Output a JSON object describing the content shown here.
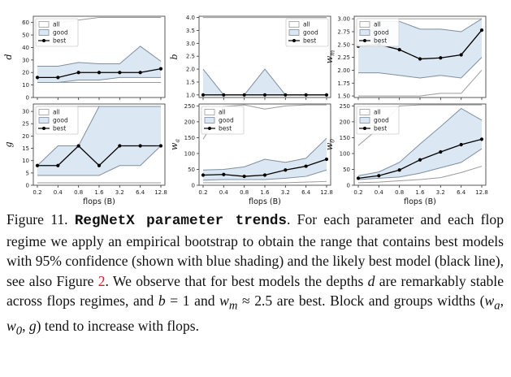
{
  "colors": {
    "band_all_line": "#9a9a9a",
    "band_good_fill": "#dbe7f3",
    "band_good_line": "#7f8fa0",
    "best_line": "#000000",
    "link_red": "#d42020"
  },
  "chart_data": [
    {
      "type": "line",
      "ylabel": "d",
      "ylabel_sub": "",
      "xlabel": "",
      "ylim": [
        0,
        65
      ],
      "yticks": [
        0,
        10,
        20,
        30,
        40,
        50,
        60
      ],
      "yticklabels": [
        "0",
        "10",
        "20",
        "30",
        "40",
        "50",
        "60"
      ],
      "xticklabels": [],
      "legend": [
        "all",
        "good",
        "best"
      ],
      "legend_position": "top-left",
      "x": [
        0,
        1,
        2,
        3,
        4,
        5,
        6
      ],
      "all_lo": [
        12,
        12,
        12,
        12,
        12,
        12,
        12
      ],
      "all_hi": [
        58,
        60,
        62,
        64,
        64,
        64,
        64
      ],
      "good_lo": [
        12,
        12,
        14,
        14,
        16,
        16,
        16
      ],
      "good_hi": [
        25,
        25,
        28,
        27,
        27,
        41,
        29
      ],
      "best": [
        16,
        16,
        20,
        20,
        20,
        20,
        23
      ]
    },
    {
      "type": "line",
      "ylabel": "b",
      "ylabel_sub": "",
      "xlabel": "",
      "ylim": [
        0.9,
        4.05
      ],
      "yticks": [
        1.0,
        1.5,
        2.0,
        2.5,
        3.0,
        3.5,
        4.0
      ],
      "yticklabels": [
        "1.0",
        "1.5",
        "2.0",
        "2.5",
        "3.0",
        "3.5",
        "4.0"
      ],
      "xticklabels": [],
      "legend": [
        "all",
        "good",
        "best"
      ],
      "legend_position": "top-right",
      "x": [
        0,
        1,
        2,
        3,
        4,
        5,
        6
      ],
      "all_lo": [
        1,
        1,
        1,
        1,
        1,
        1,
        1
      ],
      "all_hi": [
        4,
        4,
        4,
        4,
        4,
        4,
        4
      ],
      "good_lo": [
        1,
        1,
        1,
        1,
        1,
        1,
        1
      ],
      "good_hi": [
        2,
        1,
        1,
        2,
        1,
        1,
        1
      ],
      "best": [
        1,
        1,
        1,
        1,
        1,
        1,
        1
      ]
    },
    {
      "type": "line",
      "ylabel": "w",
      "ylabel_sub": "m",
      "xlabel": "",
      "ylim": [
        1.47,
        3.05
      ],
      "yticks": [
        1.5,
        1.75,
        2.0,
        2.25,
        2.5,
        2.75,
        3.0
      ],
      "yticklabels": [
        "1.50",
        "1.75",
        "2.00",
        "2.25",
        "2.50",
        "2.75",
        "3.00"
      ],
      "xticklabels": [],
      "legend": [
        "all",
        "good",
        "best"
      ],
      "legend_position": "top-left",
      "x": [
        0,
        1,
        2,
        3,
        4,
        5,
        6
      ],
      "all_lo": [
        1.5,
        1.5,
        1.5,
        1.5,
        1.55,
        1.55,
        2.0
      ],
      "all_hi": [
        3.0,
        3.0,
        3.0,
        3.0,
        3.0,
        3.0,
        3.0
      ],
      "good_lo": [
        1.95,
        1.95,
        1.9,
        1.85,
        1.9,
        1.85,
        2.25
      ],
      "good_hi": [
        2.9,
        2.95,
        2.95,
        2.8,
        2.8,
        2.75,
        3.0
      ],
      "best": [
        2.47,
        2.5,
        2.4,
        2.22,
        2.24,
        2.3,
        2.78
      ]
    },
    {
      "type": "line",
      "ylabel": "g",
      "ylabel_sub": "",
      "xlabel": "flops (B)",
      "ylim": [
        0,
        33
      ],
      "yticks": [
        0,
        5,
        10,
        15,
        20,
        25,
        30
      ],
      "yticklabels": [
        "0",
        "5",
        "10",
        "15",
        "20",
        "25",
        "30"
      ],
      "xticklabels": [
        "0.2",
        "0.4",
        "0.8",
        "1.6",
        "3.2",
        "6.4",
        "12.8"
      ],
      "legend": [
        "all",
        "good",
        "best"
      ],
      "legend_position": "top-left",
      "x": [
        0,
        1,
        2,
        3,
        4,
        5,
        6
      ],
      "all_lo": [
        1,
        1,
        1,
        1,
        1,
        1,
        1
      ],
      "all_hi": [
        32,
        32,
        32,
        32,
        32,
        32,
        32
      ],
      "good_lo": [
        4,
        4,
        4,
        4,
        8,
        8,
        16
      ],
      "good_hi": [
        8,
        16,
        16,
        32,
        32,
        32,
        32
      ],
      "best": [
        8,
        8,
        16,
        8,
        16,
        16,
        16
      ]
    },
    {
      "type": "line",
      "ylabel": "w",
      "ylabel_sub": "a",
      "xlabel": "flops (B)",
      "ylim": [
        0,
        256
      ],
      "yticks": [
        0,
        50,
        100,
        150,
        200,
        250
      ],
      "yticklabels": [
        "0",
        "50",
        "100",
        "150",
        "200",
        "250"
      ],
      "xticklabels": [
        "0.2",
        "0.4",
        "0.8",
        "1.6",
        "3.2",
        "6.4",
        "12.8"
      ],
      "legend": [
        "all",
        "good",
        "best"
      ],
      "legend_position": "top-left",
      "x": [
        0,
        1,
        2,
        3,
        4,
        5,
        6
      ],
      "all_lo": [
        8,
        8,
        8,
        8,
        8,
        10,
        12
      ],
      "all_hi": [
        145,
        248,
        253,
        240,
        250,
        253,
        253
      ],
      "good_lo": [
        16,
        18,
        18,
        18,
        22,
        28,
        48
      ],
      "good_hi": [
        48,
        50,
        58,
        82,
        72,
        85,
        148
      ],
      "best": [
        32,
        34,
        28,
        32,
        48,
        60,
        82
      ]
    },
    {
      "type": "line",
      "ylabel": "w",
      "ylabel_sub": "0",
      "xlabel": "flops (B)",
      "ylim": [
        0,
        256
      ],
      "yticks": [
        0,
        50,
        100,
        150,
        200,
        250
      ],
      "yticklabels": [
        "0",
        "50",
        "100",
        "150",
        "200",
        "250"
      ],
      "xticklabels": [
        "0.2",
        "0.4",
        "0.8",
        "1.6",
        "3.2",
        "6.4",
        "12.8"
      ],
      "legend": [
        "all",
        "good",
        "best"
      ],
      "legend_position": "top-left",
      "x": [
        0,
        1,
        2,
        3,
        4,
        5,
        6
      ],
      "all_lo": [
        8,
        10,
        14,
        18,
        24,
        40,
        60
      ],
      "all_hi": [
        125,
        180,
        250,
        253,
        253,
        253,
        253
      ],
      "good_lo": [
        18,
        22,
        26,
        38,
        55,
        72,
        115
      ],
      "good_hi": [
        30,
        42,
        72,
        130,
        185,
        242,
        205
      ],
      "best": [
        22,
        30,
        48,
        80,
        105,
        128,
        145
      ]
    }
  ],
  "caption": {
    "fig_label": "Figure 11.",
    "title": "RegNetX parameter trends",
    "t1": ". For each parameter and each flop regime we apply an empirical bootstrap to obtain the range that contains best models with 95% confidence (shown with blue shading) and the likely best model (black line), see also Figure ",
    "ref": "2",
    "t2": ". We observe that for best models the depths ",
    "v_d": "d",
    "t3": " are remarkably stable across flops regimes, and ",
    "v_b": "b",
    "t4": " = 1 and ",
    "v_wm": "w",
    "v_wm_sub": "m",
    "t5": " ≈ 2.5 are best. Block and groups widths (",
    "v_wa": "w",
    "v_wa_sub": "a",
    "t6": ", ",
    "v_w0": "w",
    "v_w0_sub": "0",
    "t7": ", ",
    "v_g": "g",
    "t8": ") tend to increase with flops."
  }
}
